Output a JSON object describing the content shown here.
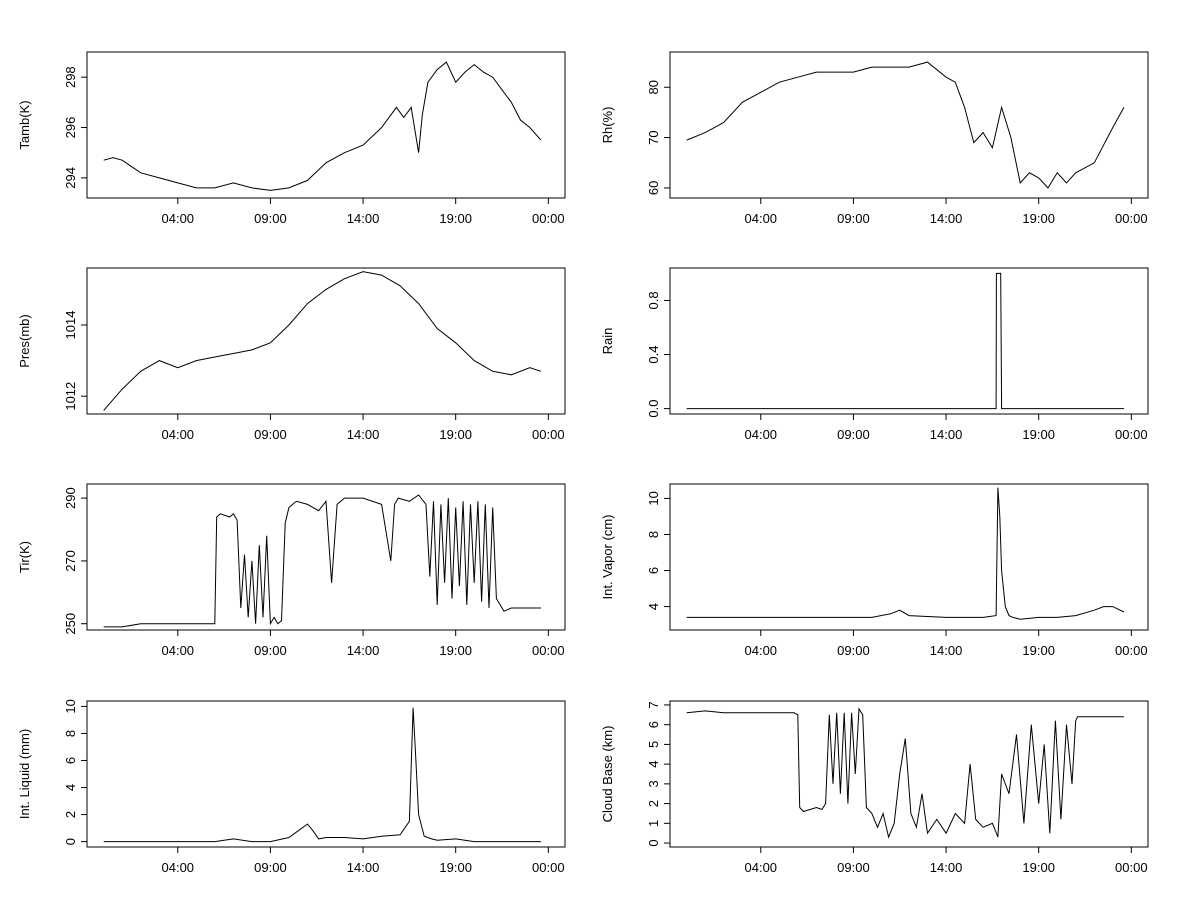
{
  "figure": {
    "x_ticks": [
      "04:00",
      "09:00",
      "14:00",
      "19:00",
      "00:00"
    ]
  },
  "chart_data": [
    {
      "type": "line",
      "ylabel": "Tamb(K)",
      "yticks": [
        294,
        296,
        298
      ],
      "ylim": [
        293.2,
        299.0
      ],
      "x_hours": [
        0,
        0.5,
        1,
        2,
        3,
        4,
        5,
        6,
        7,
        8,
        9,
        10,
        11,
        12,
        13,
        14,
        15,
        15.8,
        16.2,
        16.6,
        17,
        17.2,
        17.5,
        18,
        18.5,
        19,
        19.5,
        20,
        20.5,
        21,
        21.5,
        22,
        22.5,
        23,
        23.6
      ],
      "values": [
        294.7,
        294.8,
        294.7,
        294.2,
        294.0,
        293.8,
        293.6,
        293.6,
        293.8,
        293.6,
        293.5,
        293.6,
        293.9,
        294.6,
        295.0,
        295.3,
        296.0,
        296.8,
        296.4,
        296.8,
        295.0,
        296.5,
        297.8,
        298.3,
        298.6,
        297.8,
        298.2,
        298.5,
        298.2,
        298.0,
        297.5,
        297.0,
        296.3,
        296.0,
        295.5
      ]
    },
    {
      "type": "line",
      "ylabel": "Rh(%)",
      "yticks": [
        60,
        70,
        80
      ],
      "ylim": [
        58,
        87
      ],
      "x_hours": [
        0,
        1,
        2,
        3,
        4,
        5,
        6,
        7,
        8,
        9,
        10,
        11,
        12,
        13,
        14,
        14.5,
        15,
        15.5,
        16,
        16.5,
        17,
        17.5,
        18,
        18.5,
        19,
        19.5,
        20,
        20.5,
        21,
        22,
        23,
        23.6
      ],
      "values": [
        69.5,
        71,
        73,
        77,
        79,
        81,
        82,
        83,
        83,
        83,
        84,
        84,
        84,
        85,
        82,
        81,
        76,
        69,
        71,
        68,
        76,
        70,
        61,
        63,
        62,
        60,
        63,
        61,
        63,
        65,
        72,
        76
      ]
    },
    {
      "type": "line",
      "ylabel": "Pres(mb)",
      "yticks": [
        1012,
        1014
      ],
      "ylim": [
        1011.5,
        1015.6
      ],
      "x_hours": [
        0,
        1,
        2,
        3,
        4,
        5,
        6,
        7,
        8,
        9,
        10,
        11,
        12,
        13,
        14,
        15,
        16,
        17,
        18,
        19,
        20,
        21,
        22,
        23,
        23.6
      ],
      "values": [
        1011.6,
        1012.2,
        1012.7,
        1013.0,
        1012.8,
        1013.0,
        1013.1,
        1013.2,
        1013.3,
        1013.5,
        1014.0,
        1014.6,
        1015.0,
        1015.3,
        1015.5,
        1015.4,
        1015.1,
        1014.6,
        1013.9,
        1013.5,
        1013.0,
        1012.7,
        1012.6,
        1012.8,
        1012.7
      ]
    },
    {
      "type": "line",
      "ylabel": "Rain",
      "yticks": [
        0.0,
        0.4,
        0.8
      ],
      "ylim": [
        -0.04,
        1.04
      ],
      "x_hours": [
        0,
        16.7,
        16.72,
        16.8,
        16.95,
        17.0,
        17.1,
        23.6
      ],
      "values": [
        0,
        0,
        1,
        1,
        1,
        0,
        0,
        0
      ]
    },
    {
      "type": "line",
      "ylabel": "Tir(K)",
      "yticks": [
        250,
        270,
        290
      ],
      "ylim": [
        248,
        294.5
      ],
      "x_hours": [
        0,
        1,
        2,
        3,
        4,
        5,
        6.0,
        6.1,
        6.3,
        6.8,
        7.0,
        7.2,
        7.4,
        7.6,
        7.8,
        8.0,
        8.2,
        8.4,
        8.6,
        8.8,
        9.0,
        9.2,
        9.4,
        9.6,
        9.8,
        10.0,
        10.4,
        11.0,
        11.6,
        12.0,
        12.3,
        12.6,
        13.0,
        14.0,
        15.0,
        15.5,
        15.7,
        15.9,
        16.5,
        17.0,
        17.4,
        17.6,
        17.8,
        18.0,
        18.2,
        18.4,
        18.6,
        18.8,
        19.0,
        19.2,
        19.4,
        19.6,
        19.8,
        20.0,
        20.2,
        20.4,
        20.6,
        20.8,
        21.0,
        21.2,
        21.4,
        21.6,
        22,
        23,
        23.6
      ],
      "values": [
        249,
        249,
        250,
        250,
        250,
        250,
        250,
        284,
        285,
        284,
        285,
        283,
        255,
        272,
        252,
        270,
        250,
        275,
        252,
        278,
        250,
        252,
        250,
        251,
        282,
        287,
        289,
        288,
        286,
        289,
        263,
        288,
        290,
        290,
        288,
        270,
        288,
        290,
        289,
        291,
        288,
        265,
        289,
        256,
        288,
        263,
        290,
        258,
        287,
        262,
        289,
        256,
        288,
        263,
        289,
        257,
        288,
        255,
        287,
        258,
        256,
        254,
        255,
        255,
        255
      ]
    },
    {
      "type": "line",
      "ylabel": "Int. Vapor (cm)",
      "yticks": [
        4,
        6,
        8,
        10
      ],
      "ylim": [
        2.7,
        10.8
      ],
      "x_hours": [
        0,
        2,
        4,
        6,
        8,
        10,
        11,
        11.5,
        12,
        14,
        16,
        16.7,
        16.8,
        16.9,
        17.0,
        17.2,
        17.4,
        17.6,
        18,
        19,
        20,
        21,
        22,
        22.5,
        23,
        23.6
      ],
      "values": [
        3.4,
        3.4,
        3.4,
        3.4,
        3.4,
        3.4,
        3.6,
        3.8,
        3.5,
        3.4,
        3.4,
        3.5,
        10.6,
        9.0,
        6.0,
        4.0,
        3.5,
        3.4,
        3.3,
        3.4,
        3.4,
        3.5,
        3.8,
        4.0,
        4.0,
        3.7
      ]
    },
    {
      "type": "line",
      "ylabel": "Int. Liquid (mm)",
      "yticks": [
        0,
        2,
        4,
        6,
        8,
        10
      ],
      "ylim": [
        -0.4,
        10.4
      ],
      "x_hours": [
        0,
        3,
        6,
        6.5,
        7,
        7.5,
        8,
        9,
        10,
        10.5,
        11,
        11.3,
        11.6,
        12,
        13,
        14,
        15,
        16,
        16.5,
        16.7,
        16.85,
        17.0,
        17.3,
        17.7,
        18,
        19,
        20,
        21,
        22,
        23,
        23.6
      ],
      "values": [
        0,
        0,
        0,
        0.1,
        0.2,
        0.1,
        0,
        0,
        0.3,
        0.8,
        1.3,
        0.8,
        0.2,
        0.3,
        0.3,
        0.2,
        0.4,
        0.5,
        1.5,
        9.9,
        6.0,
        2.0,
        0.4,
        0.2,
        0.1,
        0.2,
        0,
        0,
        0,
        0,
        0
      ]
    },
    {
      "type": "line",
      "ylabel": "Cloud Base (km)",
      "yticks": [
        0,
        1,
        2,
        3,
        4,
        5,
        6,
        7
      ],
      "ylim": [
        -0.2,
        7.2
      ],
      "x_hours": [
        0,
        1,
        2,
        3,
        4,
        5,
        5.8,
        6.0,
        6.1,
        6.3,
        7.0,
        7.3,
        7.5,
        7.7,
        7.9,
        8.1,
        8.3,
        8.5,
        8.7,
        8.9,
        9.1,
        9.3,
        9.5,
        9.7,
        10.0,
        10.3,
        10.6,
        10.9,
        11.2,
        11.5,
        11.8,
        12.1,
        12.4,
        12.7,
        13.0,
        13.5,
        14.0,
        14.5,
        15.0,
        15.3,
        15.6,
        16.0,
        16.5,
        16.8,
        17.0,
        17.4,
        17.8,
        18.2,
        18.6,
        19.0,
        19.3,
        19.6,
        19.9,
        20.2,
        20.5,
        20.8,
        21.0,
        21.1,
        22,
        23,
        23.6
      ],
      "values": [
        6.6,
        6.7,
        6.6,
        6.6,
        6.6,
        6.6,
        6.6,
        6.5,
        1.8,
        1.6,
        1.8,
        1.7,
        2.0,
        6.5,
        3.0,
        6.6,
        2.5,
        6.6,
        2.0,
        6.6,
        3.5,
        6.8,
        6.5,
        1.8,
        1.5,
        0.8,
        1.5,
        0.3,
        1.0,
        3.5,
        5.3,
        1.5,
        0.8,
        2.5,
        0.5,
        1.2,
        0.5,
        1.5,
        1.0,
        4.0,
        1.2,
        0.8,
        1.0,
        0.3,
        3.5,
        2.5,
        5.5,
        1.0,
        6.0,
        2.0,
        5.0,
        0.5,
        6.2,
        1.2,
        6.0,
        3.0,
        6.2,
        6.4,
        6.4,
        6.4,
        6.4
      ]
    }
  ]
}
